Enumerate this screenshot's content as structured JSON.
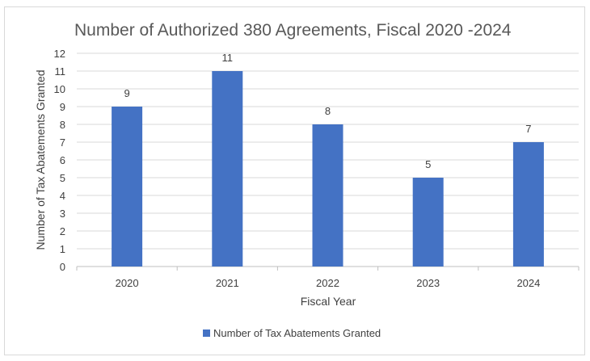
{
  "chart_data": {
    "type": "bar",
    "title": "Number of Authorized 380 Agreements, Fiscal 2020 -2024",
    "xlabel": "Fiscal Year",
    "ylabel": "Number of Tax Abatements Granted",
    "categories": [
      "2020",
      "2021",
      "2022",
      "2023",
      "2024"
    ],
    "series": [
      {
        "name": "Number of Tax Abatements Granted",
        "values": [
          9,
          11,
          8,
          5,
          7
        ],
        "color": "#4472C4"
      }
    ],
    "ylim": [
      0,
      12
    ],
    "yticks": [
      0,
      1,
      2,
      3,
      4,
      5,
      6,
      7,
      8,
      9,
      10,
      11,
      12
    ],
    "grid": true,
    "data_labels": true,
    "legend": "bottom"
  }
}
